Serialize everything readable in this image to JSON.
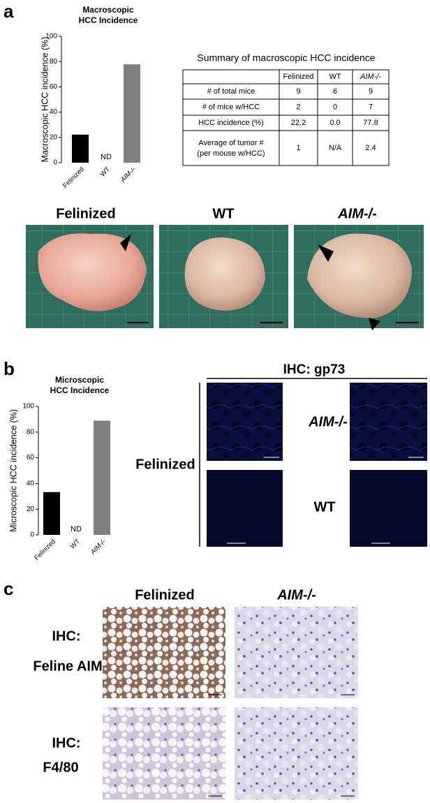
{
  "panel_labels": [
    "a",
    "b",
    "c"
  ],
  "chart_data": [
    {
      "type": "bar",
      "title": [
        "Macroscopic",
        "HCC Incidence"
      ],
      "y_label": "Macroscopic HCC incidence (%)",
      "categories": [
        "Felinized",
        "WT",
        "AIM-/-"
      ],
      "values": [
        22.2,
        null,
        77.8
      ],
      "colors": [
        "#000000",
        "#000000",
        "#808080"
      ],
      "annotation": "ND",
      "ylim": [
        0,
        100
      ],
      "yticks": [
        0,
        20,
        40,
        60,
        80,
        100
      ]
    },
    {
      "type": "bar",
      "title": [
        "Microscopic",
        "HCC Incidence"
      ],
      "y_label": "Microscopic HCC incidence (%)",
      "categories": [
        "Felinized",
        "WT",
        "AIM-/-"
      ],
      "values": [
        33.3,
        null,
        88.9
      ],
      "colors": [
        "#000000",
        "#000000",
        "#808080"
      ],
      "annotation": "ND",
      "ylim": [
        0,
        100
      ],
      "yticks": [
        0,
        20,
        40,
        60,
        80,
        100
      ]
    }
  ],
  "table": {
    "title": "Summary of macroscopic HCC incidence",
    "header": [
      "Felinized",
      "WT",
      "AIM-/-"
    ],
    "rows": [
      [
        "# of total mice",
        "9",
        "6",
        "9"
      ],
      [
        "# of mice w/HCC",
        "2",
        "0",
        "7"
      ],
      [
        "HCC incidence (%)",
        "22.2",
        "0.0",
        "77.8"
      ],
      [
        "Average of tumor #",
        "1",
        "N/A",
        "2.4"
      ]
    ],
    "row_note": "(per mouse w/HCC)"
  },
  "photos": {
    "labels": [
      "Felinized",
      "WT",
      "AIM-/-"
    ]
  },
  "ihc_gp73": {
    "title": "IHC: gp73",
    "row_label": "Felinized",
    "labels": [
      "AIM-/-",
      "WT"
    ]
  },
  "panel_c": {
    "columns": [
      "Felinized",
      "AIM-/-"
    ],
    "rows": [
      [
        "IHC:",
        "Feline AIM"
      ],
      [
        "IHC:",
        "F4/80"
      ]
    ]
  }
}
